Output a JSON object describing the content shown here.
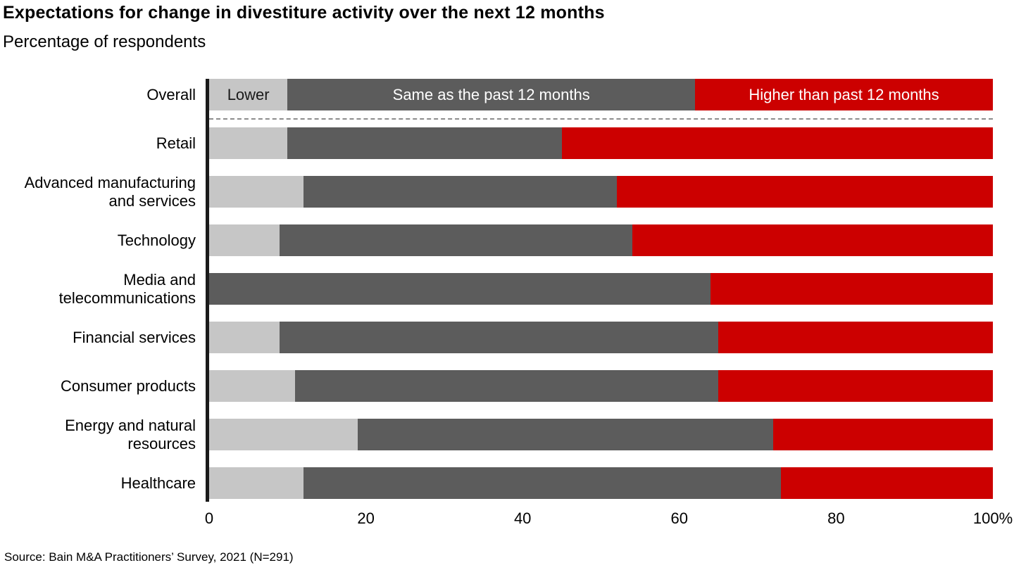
{
  "header": {
    "title": "Expectations for change in divestiture activity over the next 12 months",
    "subtitle": "Percentage of respondents"
  },
  "footer": {
    "source": "Source: Bain M&A Practitioners’ Survey, 2021 (N=291)"
  },
  "colors": {
    "lower": "#c6c6c6",
    "same": "#5c5c5c",
    "higher": "#cc0000"
  },
  "chart_data": {
    "type": "bar",
    "stacked": true,
    "orientation": "horizontal",
    "title": "Expectations for change in divestiture activity over the next 12 months",
    "subtitle": "Percentage of respondents",
    "xlabel": "",
    "ylabel": "",
    "xlim": [
      0,
      100
    ],
    "x_ticks": [
      "0",
      "20",
      "40",
      "60",
      "80",
      "100%"
    ],
    "grid": false,
    "legend_position": "inside-first-bar",
    "categories": [
      "Overall",
      "Retail",
      "Advanced manufacturing and services",
      "Technology",
      "Media and telecommunications",
      "Financial services",
      "Consumer products",
      "Energy and natural resources",
      "Healthcare"
    ],
    "series": [
      {
        "key": "lower",
        "name": "Lower",
        "values": [
          10,
          10,
          12,
          9,
          0,
          9,
          11,
          19,
          12
        ]
      },
      {
        "key": "same",
        "name": "Same as the past 12 months",
        "values": [
          52,
          35,
          40,
          45,
          64,
          56,
          54,
          53,
          61
        ]
      },
      {
        "key": "higher",
        "name": "Higher than past 12 months",
        "values": [
          38,
          55,
          48,
          46,
          36,
          35,
          35,
          28,
          27
        ]
      }
    ]
  }
}
